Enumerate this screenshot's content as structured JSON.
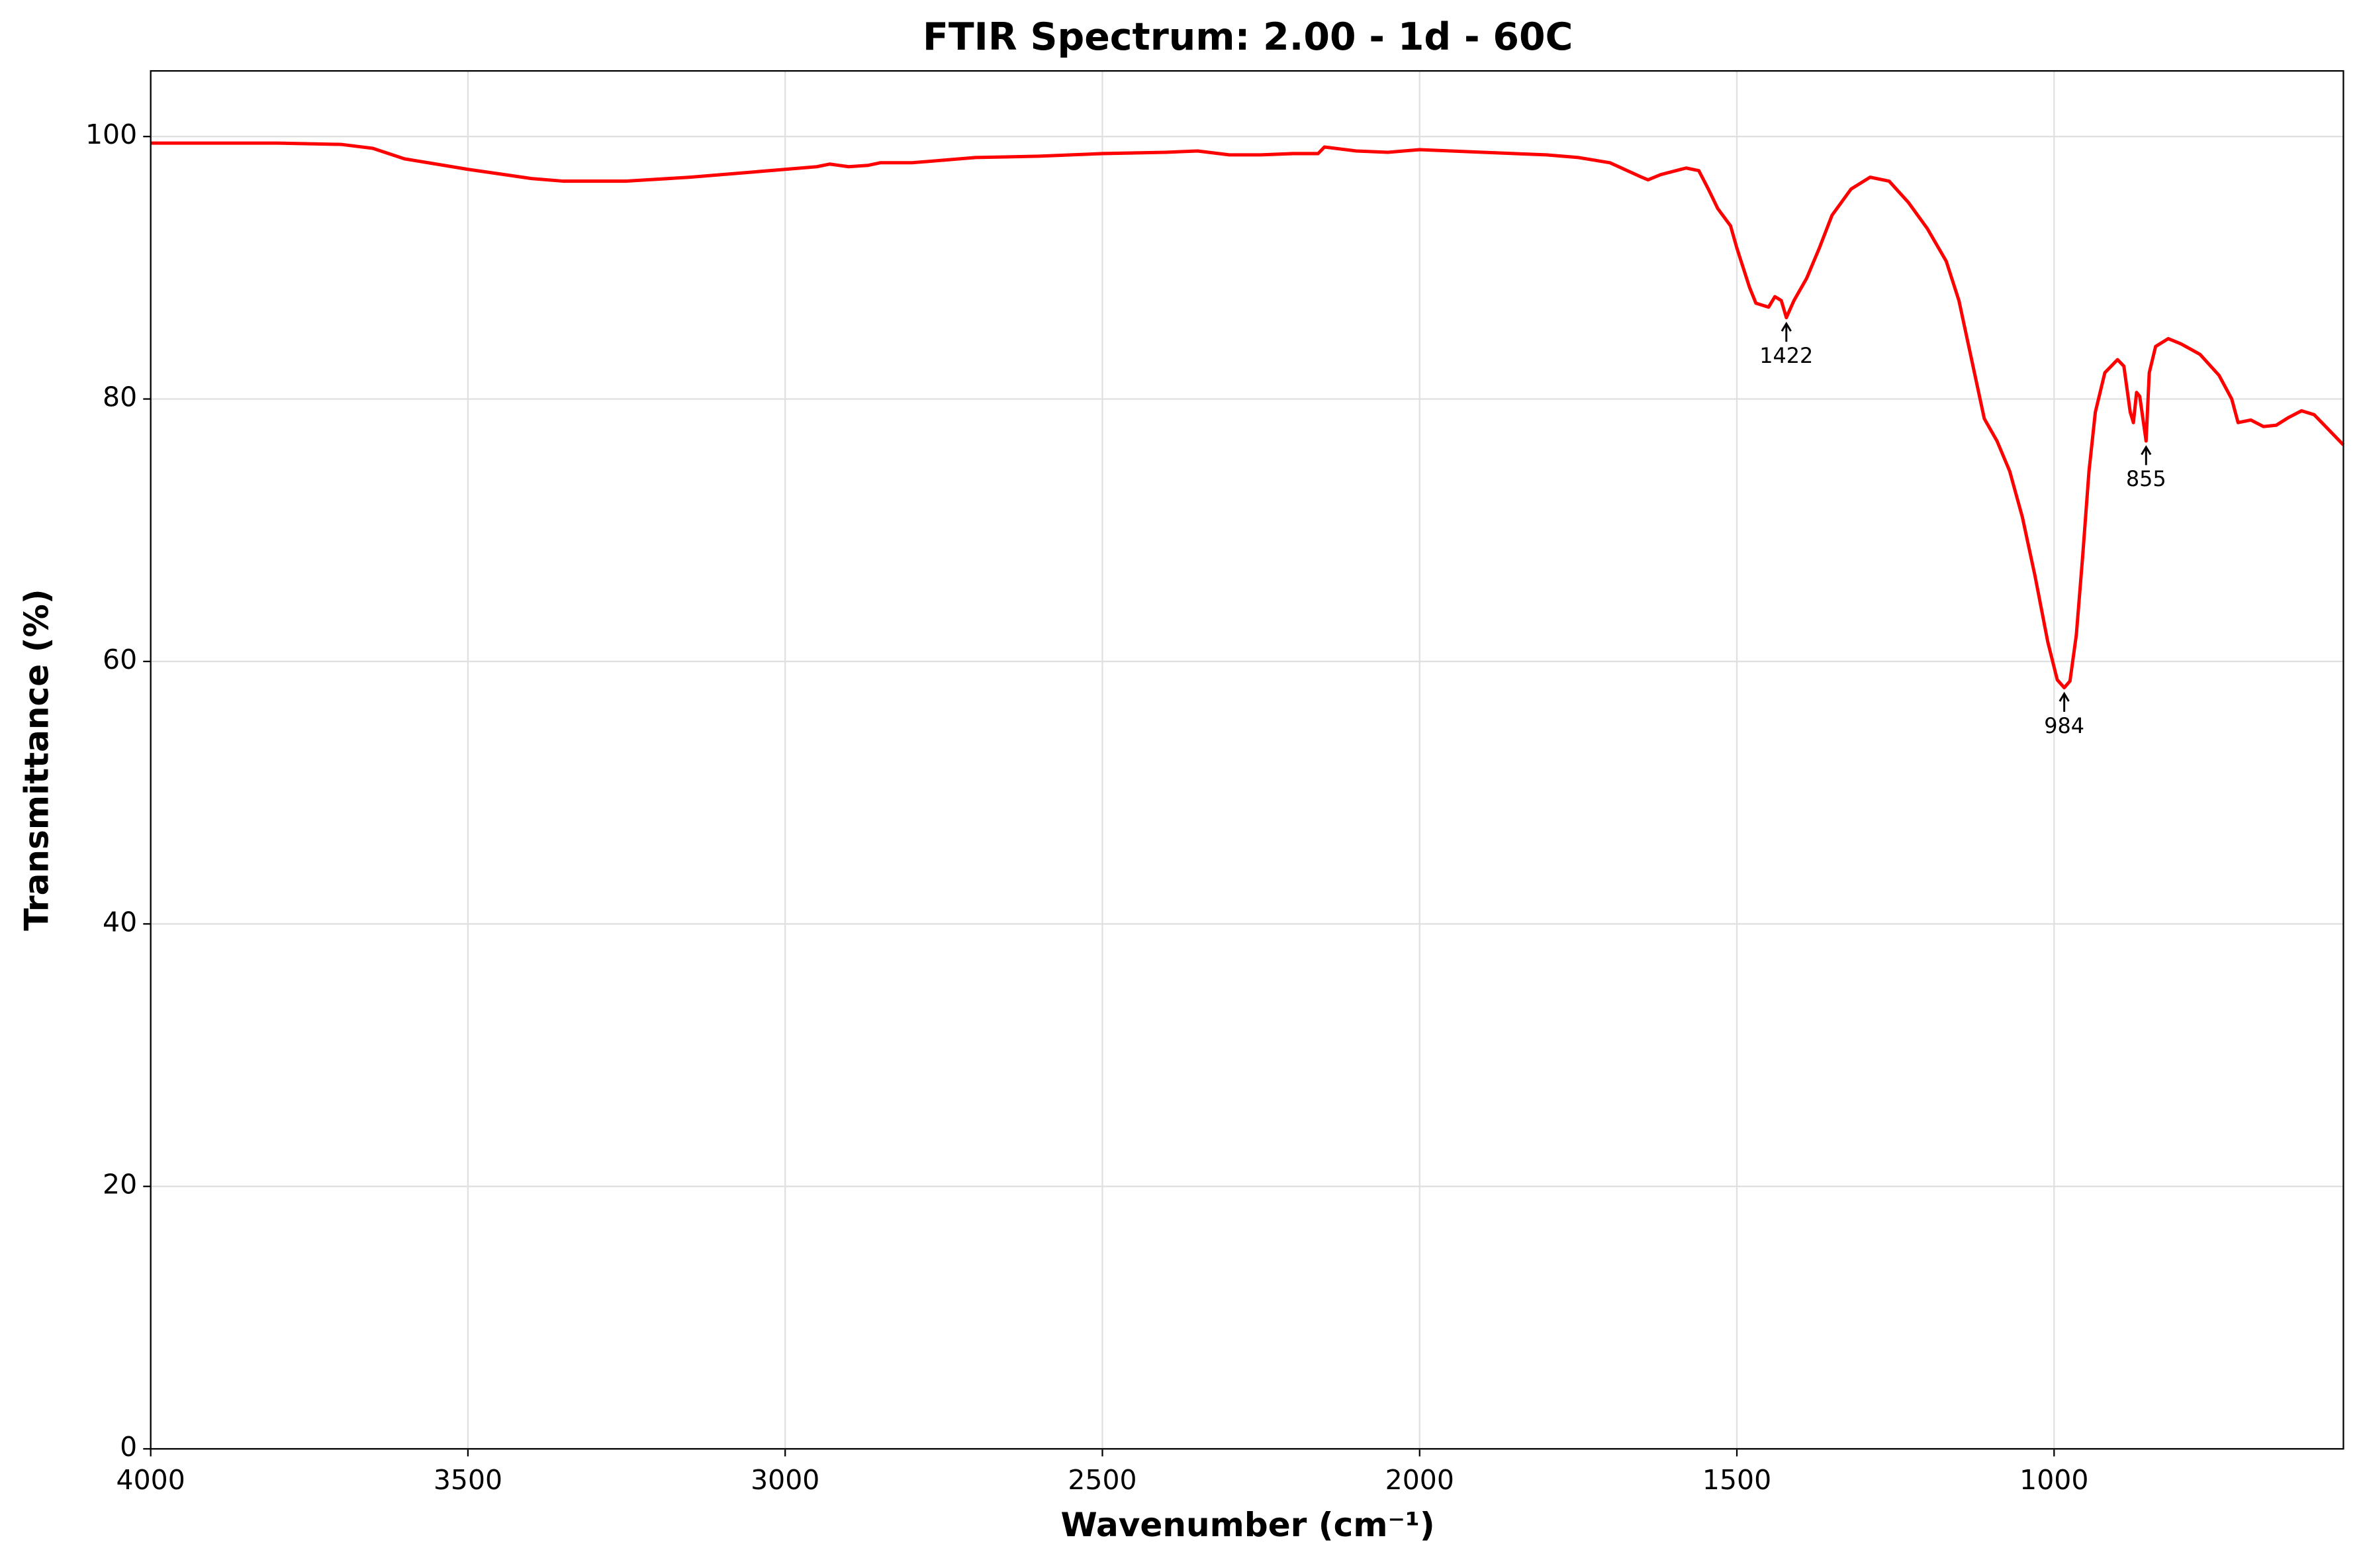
{
  "chart_data": {
    "type": "line",
    "title": "FTIR Spectrum: 2.00 - 1d - 60C",
    "xlabel": "Wavenumber (cm⁻¹)",
    "ylabel": "Transmittance (%)",
    "xlim": [
      4000,
      544
    ],
    "ylim": [
      0,
      105
    ],
    "xticks": [
      4000,
      3500,
      3000,
      2500,
      2000,
      1500,
      1000
    ],
    "yticks": [
      0,
      20,
      40,
      60,
      80,
      100
    ],
    "grid": true,
    "x": [
      4000,
      3800,
      3700,
      3650,
      3600,
      3500,
      3400,
      3350,
      3250,
      3150,
      3050,
      2950,
      2930,
      2900,
      2870,
      2850,
      2800,
      2700,
      2600,
      2500,
      2400,
      2350,
      2300,
      2250,
      2200,
      2160,
      2150,
      2100,
      2050,
      2000,
      1950,
      1900,
      1800,
      1750,
      1700,
      1650,
      1640,
      1620,
      1580,
      1560,
      1545,
      1530,
      1510,
      1500,
      1480,
      1470,
      1450,
      1440,
      1430,
      1422,
      1410,
      1390,
      1370,
      1350,
      1320,
      1290,
      1260,
      1230,
      1200,
      1170,
      1150,
      1130,
      1110,
      1090,
      1070,
      1050,
      1030,
      1010,
      995,
      984,
      975,
      965,
      955,
      945,
      935,
      920,
      900,
      890,
      880,
      875,
      870,
      865,
      855,
      850,
      840,
      820,
      800,
      770,
      740,
      720,
      710,
      690,
      670,
      650,
      630,
      610,
      590,
      570,
      550,
      544
    ],
    "series": [
      {
        "color": "#ff0000",
        "values": [
          99.5,
          99.5,
          99.4,
          99.1,
          98.3,
          97.5,
          96.8,
          96.6,
          96.6,
          96.9,
          97.3,
          97.7,
          97.9,
          97.7,
          97.8,
          98.0,
          98.0,
          98.4,
          98.5,
          98.7,
          98.8,
          98.9,
          98.6,
          98.6,
          98.7,
          98.7,
          99.2,
          98.9,
          98.8,
          99.0,
          98.9,
          98.8,
          98.6,
          98.4,
          98.0,
          96.9,
          96.7,
          97.1,
          97.6,
          97.4,
          96.0,
          94.5,
          93.2,
          91.5,
          88.5,
          87.3,
          87.0,
          87.8,
          87.5,
          86.2,
          87.5,
          89.2,
          91.5,
          94.0,
          96.0,
          96.9,
          96.6,
          95.0,
          93.0,
          90.5,
          87.5,
          83.0,
          78.5,
          76.8,
          74.5,
          71.0,
          66.5,
          61.5,
          58.6,
          58.0,
          58.5,
          62.0,
          68.0,
          74.5,
          79.0,
          82.0,
          83.0,
          82.5,
          79.0,
          78.2,
          80.5,
          80.2,
          76.8,
          82.0,
          84.0,
          84.6,
          84.2,
          83.4,
          81.8,
          80.0,
          78.2,
          78.4,
          77.9,
          78.0,
          78.6,
          79.1,
          78.8,
          77.8,
          76.8,
          76.5
        ]
      }
    ],
    "annotations": [
      {
        "text": "1422",
        "x": 1422,
        "y": 86.2
      },
      {
        "text": "984",
        "x": 984,
        "y": 58.0
      },
      {
        "text": "855",
        "x": 855,
        "y": 76.8
      }
    ]
  }
}
